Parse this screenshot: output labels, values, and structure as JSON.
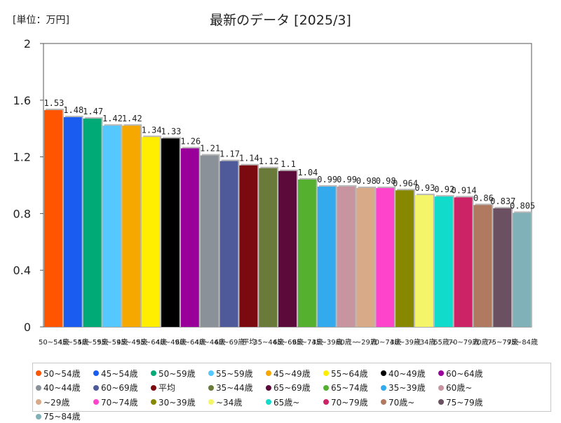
{
  "unit_label": "[単位：万円]",
  "chart_data": {
    "type": "bar",
    "title": "最新のデータ [2025/3]",
    "xlabel": "",
    "ylabel": "",
    "ylim": [
      0,
      2
    ],
    "yticks": [
      "0",
      "0.4",
      "0.8",
      "1.2",
      "1.6",
      "2"
    ],
    "grid": false,
    "legend": "bottom",
    "categories": [
      "50~54歳",
      "45~54歳",
      "50~59歳",
      "55~59歳",
      "45~49歳",
      "55~64歳",
      "40~49歳",
      "60~64歳",
      "40~44歳",
      "60~69歳",
      "平均",
      "35~44歳",
      "65~69歳",
      "65~74歳",
      "35~39歳",
      "60歳~",
      "~29歳",
      "70~74歳",
      "30~39歳",
      "~34歳",
      "65歳~",
      "70~79歳",
      "70歳~",
      "75~79歳",
      "75~84歳"
    ],
    "values": [
      1.53,
      1.48,
      1.47,
      1.42,
      1.42,
      1.34,
      1.33,
      1.26,
      1.21,
      1.17,
      1.14,
      1.12,
      1.1,
      1.04,
      0.99,
      0.99,
      0.98,
      0.98,
      0.964,
      0.93,
      0.92,
      0.914,
      0.86,
      0.837,
      0.805
    ],
    "value_labels": [
      "1.53",
      "1.48",
      "1.47",
      "1.42",
      "1.42",
      "1.34",
      "1.33",
      "1.26",
      "1.21",
      "1.17",
      "1.14",
      "1.12",
      "1.1",
      "1.04",
      "0.99",
      "0.99",
      "0.98",
      "0.98",
      "0.964",
      "0.93",
      "0.92",
      "0.914",
      "0.86",
      "0.837",
      "0.805"
    ],
    "colors": [
      "#ff5500",
      "#1a5cf0",
      "#00aa77",
      "#55c8ff",
      "#f7a800",
      "#ffee00",
      "#000000",
      "#990099",
      "#8a9199",
      "#4f5a9a",
      "#7a0a10",
      "#6a7a3a",
      "#5c0a3a",
      "#55b030",
      "#33aaee",
      "#c7949f",
      "#d8aa88",
      "#ff44cc",
      "#888800",
      "#f5f56a",
      "#11dccc",
      "#cc2266",
      "#b07a60",
      "#6a5060",
      "#80b0b8"
    ]
  }
}
